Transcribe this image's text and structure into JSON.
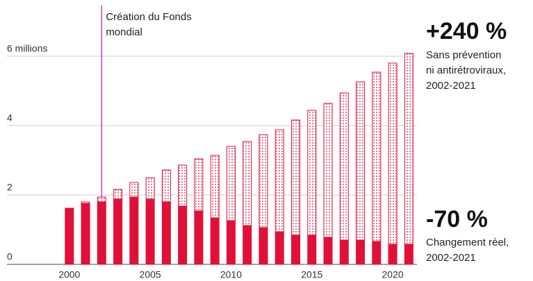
{
  "chart_data": {
    "type": "stacked_bar",
    "x": [
      2000,
      2001,
      2002,
      2003,
      2004,
      2005,
      2006,
      2007,
      2008,
      2009,
      2010,
      2011,
      2012,
      2013,
      2014,
      2015,
      2016,
      2017,
      2018,
      2019,
      2020,
      2021
    ],
    "series": [
      {
        "color": "#e0103a",
        "pattern": "solid",
        "values": [
          1.62,
          1.76,
          1.8,
          1.88,
          1.94,
          1.88,
          1.8,
          1.68,
          1.54,
          1.34,
          1.26,
          1.12,
          1.06,
          0.94,
          0.84,
          0.84,
          0.78,
          0.7,
          0.7,
          0.66,
          0.58,
          0.58
        ]
      },
      {
        "color": "#e0103a",
        "pattern": "dotted",
        "values": [
          0,
          0.04,
          0.14,
          0.28,
          0.42,
          0.62,
          0.92,
          1.18,
          1.5,
          1.8,
          2.14,
          2.42,
          2.68,
          2.94,
          3.32,
          3.6,
          3.86,
          4.24,
          4.56,
          4.88,
          5.22,
          5.5
        ]
      }
    ],
    "xlim": [
      1997,
      2021.5
    ],
    "xticks": [
      2000,
      2005,
      2010,
      2015,
      2020
    ],
    "ylim": [
      0,
      6.5
    ],
    "yticks": [
      0,
      2,
      4,
      {
        "value": 6,
        "label": "6 millions"
      }
    ],
    "grid": true,
    "event": {
      "x": 2002,
      "color": "#c23fc8",
      "lines": [
        "Création du Fonds",
        "mondial"
      ]
    },
    "annotations": [
      {
        "headline": "+240 %",
        "lines": [
          "Sans prévention",
          "ni antirétroviraux,",
          "2002-2021"
        ]
      },
      {
        "headline": "-70 %",
        "lines": [
          "Changement réel,",
          "2002-2021"
        ]
      }
    ]
  }
}
